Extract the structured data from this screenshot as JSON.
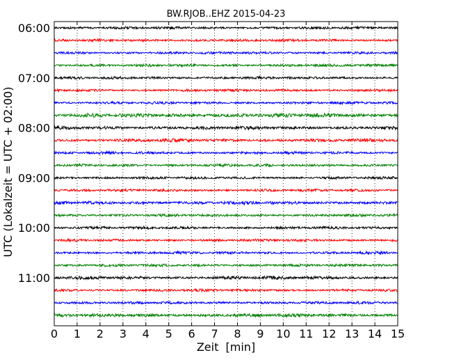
{
  "chart_data": {
    "type": "line",
    "title": "BW.RJOB..EHZ 2015-04-23",
    "xlabel": "Zeit  [min]",
    "ylabel": "UTC (Lokalzeit = UTC + 02:00)",
    "xlim": [
      0,
      15
    ],
    "x_ticks": [
      "0",
      "1",
      "2",
      "3",
      "4",
      "5",
      "6",
      "7",
      "8",
      "9",
      "10",
      "11",
      "12",
      "13",
      "14",
      "15"
    ],
    "y_tick_labels": [
      "06:00",
      "07:00",
      "08:00",
      "09:00",
      "10:00",
      "11:00"
    ],
    "traces": [
      {
        "start": "06:00",
        "color": "#000000",
        "amplitude": 2.0
      },
      {
        "start": "06:15",
        "color": "#ff0000",
        "amplitude": 2.0
      },
      {
        "start": "06:30",
        "color": "#0000ff",
        "amplitude": 2.0
      },
      {
        "start": "06:45",
        "color": "#008000",
        "amplitude": 2.0
      },
      {
        "start": "07:00",
        "color": "#000000",
        "amplitude": 2.0
      },
      {
        "start": "07:15",
        "color": "#ff0000",
        "amplitude": 2.0
      },
      {
        "start": "07:30",
        "color": "#0000ff",
        "amplitude": 2.0
      },
      {
        "start": "07:45",
        "color": "#008000",
        "amplitude": 3.0
      },
      {
        "start": "08:00",
        "color": "#000000",
        "amplitude": 2.5
      },
      {
        "start": "08:15",
        "color": "#ff0000",
        "amplitude": 2.5
      },
      {
        "start": "08:30",
        "color": "#0000ff",
        "amplitude": 2.0
      },
      {
        "start": "08:45",
        "color": "#008000",
        "amplitude": 2.0
      },
      {
        "start": "09:00",
        "color": "#000000",
        "amplitude": 2.0
      },
      {
        "start": "09:15",
        "color": "#ff0000",
        "amplitude": 2.0
      },
      {
        "start": "09:30",
        "color": "#0000ff",
        "amplitude": 2.5
      },
      {
        "start": "09:45",
        "color": "#008000",
        "amplitude": 2.0
      },
      {
        "start": "10:00",
        "color": "#000000",
        "amplitude": 2.0
      },
      {
        "start": "10:15",
        "color": "#ff0000",
        "amplitude": 2.0
      },
      {
        "start": "10:30",
        "color": "#0000ff",
        "amplitude": 2.0
      },
      {
        "start": "10:45",
        "color": "#008000",
        "amplitude": 2.0
      },
      {
        "start": "11:00",
        "color": "#000000",
        "amplitude": 2.5
      },
      {
        "start": "11:15",
        "color": "#ff0000",
        "amplitude": 2.0
      },
      {
        "start": "11:30",
        "color": "#0000ff",
        "amplitude": 2.0
      },
      {
        "start": "11:45",
        "color": "#008000",
        "amplitude": 2.5
      }
    ],
    "grid": "vertical-dotted",
    "legend": "none"
  }
}
